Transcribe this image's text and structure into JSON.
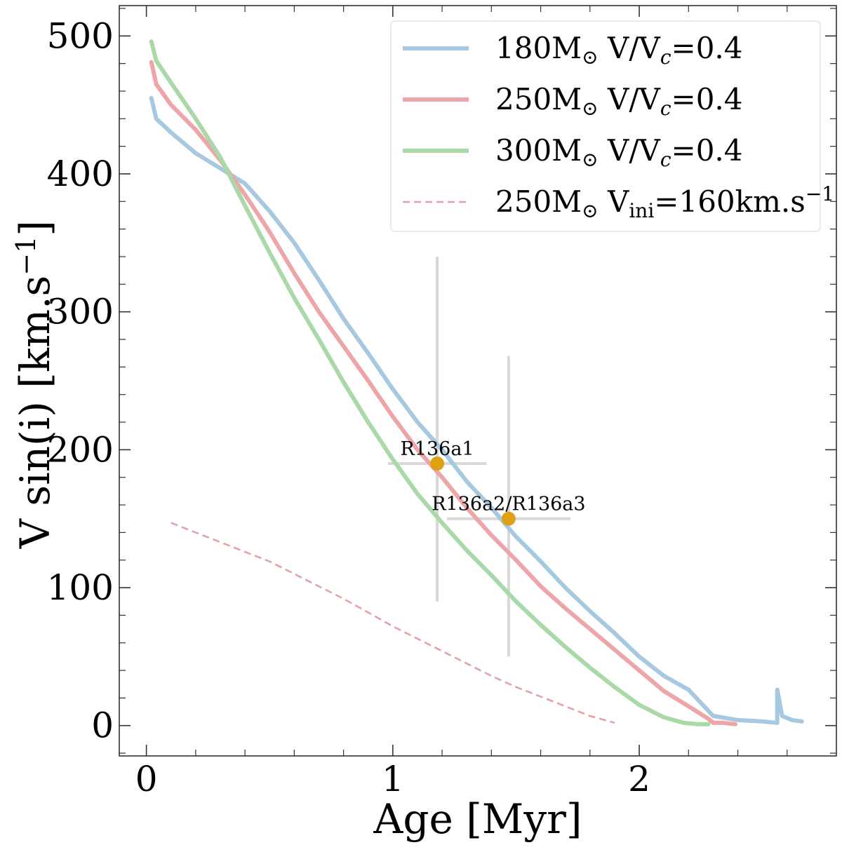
{
  "chart_data": {
    "type": "line",
    "xlabel": "Age [Myr]",
    "ylabel": "V sin(i) [km.s",
    "ylabel_sup": "−1",
    "ylabel_close": "]",
    "xlim": [
      -0.11,
      2.8
    ],
    "ylim": [
      -22,
      522
    ],
    "xticks": [
      0,
      1,
      2
    ],
    "yticks": [
      0,
      100,
      200,
      300,
      400,
      500
    ],
    "grid": false,
    "legend_position": "top-right",
    "series": [
      {
        "name": "180M⊙ V/Vc=0.4",
        "legend": {
          "mass": "180M",
          "sun": "⊙",
          "mid": " V/V",
          "sub": "c",
          "tail": "=0.4"
        },
        "color": "#a6c8e0",
        "style": "solid",
        "x": [
          0.02,
          0.04,
          0.1,
          0.2,
          0.3,
          0.4,
          0.5,
          0.6,
          0.7,
          0.8,
          0.9,
          1.0,
          1.1,
          1.2,
          1.3,
          1.4,
          1.5,
          1.6,
          1.7,
          1.8,
          1.9,
          2.0,
          2.1,
          2.2,
          2.3,
          2.4,
          2.5,
          2.56,
          2.56,
          2.58,
          2.62,
          2.66
        ],
        "y": [
          455,
          440,
          430,
          415,
          404,
          393,
          373,
          350,
          323,
          295,
          270,
          244,
          220,
          200,
          177,
          158,
          137,
          119,
          100,
          83,
          67,
          50,
          36,
          26,
          7,
          4,
          3,
          2,
          26,
          7,
          4,
          3
        ]
      },
      {
        "name": "250M⊙ V/Vc=0.4",
        "legend": {
          "mass": "250M",
          "sun": "⊙",
          "mid": " V/V",
          "sub": "c",
          "tail": "=0.4"
        },
        "color": "#eea5a8",
        "style": "solid",
        "x": [
          0.02,
          0.04,
          0.1,
          0.2,
          0.3,
          0.4,
          0.5,
          0.6,
          0.7,
          0.8,
          0.9,
          1.0,
          1.1,
          1.2,
          1.3,
          1.4,
          1.5,
          1.6,
          1.7,
          1.8,
          1.9,
          2.0,
          2.1,
          2.2,
          2.28,
          2.3,
          2.34,
          2.39
        ],
        "y": [
          481,
          465,
          450,
          432,
          410,
          385,
          358,
          328,
          300,
          275,
          250,
          224,
          200,
          180,
          158,
          138,
          120,
          101,
          85,
          70,
          55,
          40,
          25,
          14,
          5,
          2,
          2,
          1
        ]
      },
      {
        "name": "300M⊙ V/Vc=0.4",
        "legend": {
          "mass": "300M",
          "sun": "⊙",
          "mid": " V/V",
          "sub": "c",
          "tail": "=0.4"
        },
        "color": "#a9d9a7",
        "style": "solid",
        "x": [
          0.02,
          0.04,
          0.1,
          0.2,
          0.3,
          0.4,
          0.5,
          0.6,
          0.7,
          0.8,
          0.9,
          1.0,
          1.1,
          1.2,
          1.3,
          1.4,
          1.5,
          1.6,
          1.7,
          1.8,
          1.9,
          2.0,
          2.1,
          2.18,
          2.24,
          2.28
        ],
        "y": [
          496,
          482,
          466,
          440,
          412,
          377,
          343,
          310,
          280,
          249,
          220,
          193,
          168,
          147,
          127,
          109,
          90,
          73,
          57,
          42,
          28,
          15,
          6,
          2,
          1,
          1
        ]
      },
      {
        "name": "250M⊙ Vini=160km.s−1",
        "legend": {
          "mass": "250M",
          "sun": "⊙",
          "mid": " V",
          "sub": "ini",
          "tail": "=160km.s",
          "sup": "−1"
        },
        "color": "#e4a3a3",
        "style": "dashed",
        "x": [
          0.1,
          0.2,
          0.3,
          0.4,
          0.5,
          0.6,
          0.7,
          0.8,
          0.9,
          1.0,
          1.1,
          1.2,
          1.3,
          1.4,
          1.5,
          1.6,
          1.7,
          1.8,
          1.9
        ],
        "y": [
          147,
          140,
          133,
          126,
          119,
          110,
          101,
          92,
          82,
          72,
          63,
          54,
          45,
          36,
          28,
          21,
          14,
          7,
          2
        ]
      }
    ],
    "points": [
      {
        "label": "R136a1",
        "x": 1.18,
        "y": 190,
        "xerr": [
          0.2,
          0.2
        ],
        "yerr": [
          100,
          150
        ],
        "color": "#e0a014"
      },
      {
        "label": "R136a2/R136a3",
        "x": 1.47,
        "y": 150,
        "xerr": [
          0.25,
          0.25
        ],
        "yerr": [
          100,
          118
        ],
        "color": "#e0a014"
      }
    ]
  }
}
